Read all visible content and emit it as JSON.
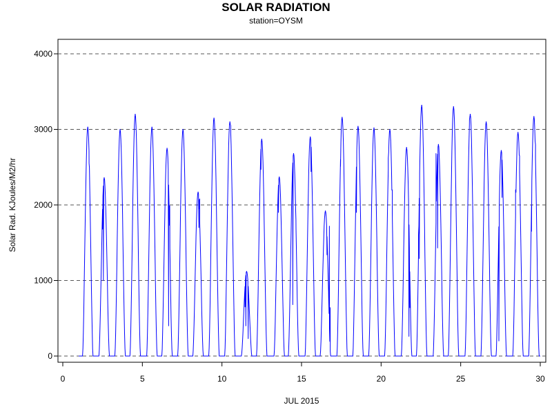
{
  "chart_data": {
    "type": "line",
    "title": "SOLAR RADIATION",
    "subtitle": "station=OYSM",
    "xlabel": "JUL 2015",
    "ylabel": "Solar Rad. KJoules/M2/hr",
    "xlim": [
      0,
      30
    ],
    "ylim": [
      0,
      4000
    ],
    "x_ticks": [
      0,
      5,
      10,
      15,
      20,
      25,
      30
    ],
    "y_ticks": [
      0,
      1000,
      2000,
      3000,
      4000
    ],
    "grid": "horizontal dashed",
    "series_color": "#0000ff",
    "daily_peaks": [
      {
        "day": 1,
        "x": 1.57,
        "peak": 3030,
        "dips": [
          [
            1.65,
            2550
          ]
        ]
      },
      {
        "day": 2,
        "x": 2.6,
        "peak": 2360,
        "dips": [
          [
            2.5,
            1680
          ],
          [
            2.55,
            1000
          ]
        ]
      },
      {
        "day": 3,
        "x": 3.6,
        "peak": 3000,
        "dips": []
      },
      {
        "day": 4,
        "x": 4.55,
        "peak": 3200,
        "dips": []
      },
      {
        "day": 5,
        "x": 5.6,
        "peak": 3030,
        "dips": []
      },
      {
        "day": 6,
        "x": 6.55,
        "peak": 2750,
        "dips": [
          [
            6.65,
            400
          ],
          [
            6.72,
            1990
          ]
        ]
      },
      {
        "day": 7,
        "x": 7.55,
        "peak": 3000,
        "dips": []
      },
      {
        "day": 8,
        "x": 8.5,
        "peak": 2170,
        "dips": [
          [
            8.55,
            1700
          ],
          [
            8.6,
            2080
          ]
        ]
      },
      {
        "day": 9,
        "x": 9.5,
        "peak": 3150,
        "dips": []
      },
      {
        "day": 10,
        "x": 10.5,
        "peak": 3100,
        "dips": [
          [
            10.55,
            3050
          ]
        ]
      },
      {
        "day": 11,
        "x": 11.55,
        "peak": 1120,
        "dips": [
          [
            11.45,
            650
          ],
          [
            11.5,
            400
          ],
          [
            11.65,
            230
          ]
        ]
      },
      {
        "day": 12,
        "x": 12.5,
        "peak": 2870,
        "dips": [
          [
            12.45,
            2470
          ]
        ]
      },
      {
        "day": 13,
        "x": 13.6,
        "peak": 2370,
        "dips": [
          [
            13.5,
            1950
          ],
          [
            13.55,
            1900
          ]
        ]
      },
      {
        "day": 14,
        "x": 14.5,
        "peak": 2680,
        "dips": [
          [
            14.45,
            680
          ],
          [
            14.6,
            2220
          ],
          [
            14.65,
            1800
          ]
        ]
      },
      {
        "day": 15,
        "x": 15.55,
        "peak": 2900,
        "dips": [
          [
            15.6,
            2440
          ]
        ]
      },
      {
        "day": 16,
        "x": 16.5,
        "peak": 1920,
        "dips": [
          [
            16.6,
            1340
          ],
          [
            16.7,
            850
          ],
          [
            16.75,
            1720
          ],
          [
            16.8,
            640
          ]
        ]
      },
      {
        "day": 17,
        "x": 17.55,
        "peak": 3160,
        "dips": [
          [
            17.45,
            2510
          ]
        ]
      },
      {
        "day": 18,
        "x": 18.55,
        "peak": 3040,
        "dips": [
          [
            18.45,
            1900
          ]
        ]
      },
      {
        "day": 19,
        "x": 19.55,
        "peak": 3020,
        "dips": []
      },
      {
        "day": 20,
        "x": 20.55,
        "peak": 3000,
        "dips": [
          [
            20.45,
            2620
          ],
          [
            20.6,
            2850
          ],
          [
            20.7,
            2200
          ]
        ]
      },
      {
        "day": 21,
        "x": 21.6,
        "peak": 2760,
        "dips": [
          [
            21.75,
            260
          ],
          [
            21.8,
            640
          ]
        ]
      },
      {
        "day": 22,
        "x": 22.55,
        "peak": 3320,
        "dips": [
          [
            22.35,
            1600
          ],
          [
            22.4,
            1290
          ]
        ]
      },
      {
        "day": 23,
        "x": 23.6,
        "peak": 2800,
        "dips": [
          [
            23.45,
            2680
          ],
          [
            23.55,
            1430
          ]
        ]
      },
      {
        "day": 24,
        "x": 24.55,
        "peak": 3300,
        "dips": []
      },
      {
        "day": 25,
        "x": 25.6,
        "peak": 3200,
        "dips": [
          [
            25.55,
            3130
          ]
        ]
      },
      {
        "day": 26,
        "x": 26.6,
        "peak": 3100,
        "dips": []
      },
      {
        "day": 27,
        "x": 27.55,
        "peak": 2720,
        "dips": [
          [
            27.4,
            200
          ],
          [
            27.6,
            2100
          ]
        ]
      },
      {
        "day": 28,
        "x": 28.6,
        "peak": 2960,
        "dips": [
          [
            28.45,
            2200
          ],
          [
            28.7,
            2650
          ]
        ]
      },
      {
        "day": 29,
        "x": 29.6,
        "peak": 3170,
        "dips": [
          [
            29.45,
            1650
          ],
          [
            29.7,
            2800
          ]
        ]
      }
    ]
  }
}
